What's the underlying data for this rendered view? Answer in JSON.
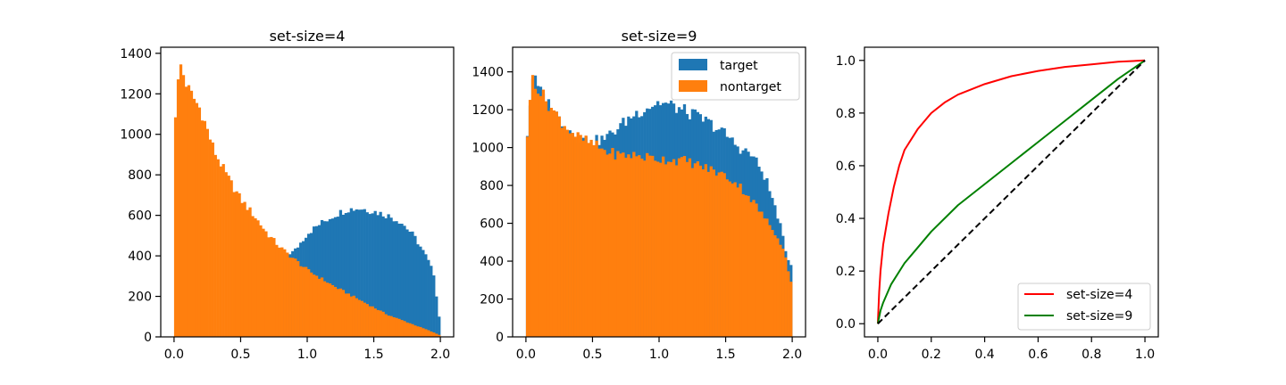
{
  "chart_data": [
    {
      "type": "bar",
      "subtype": "histogram",
      "title": "set-size=4",
      "xlim": [
        -0.1,
        2.1
      ],
      "ylim": [
        0,
        1430
      ],
      "xticks": [
        0.0,
        0.5,
        1.0,
        1.5,
        2.0
      ],
      "xtick_labels": [
        "0.0",
        "0.5",
        "1.0",
        "1.5",
        "2.0"
      ],
      "yticks": [
        0,
        200,
        400,
        600,
        800,
        1000,
        1200,
        1400
      ],
      "ytick_labels": [
        "0",
        "200",
        "400",
        "600",
        "800",
        "1000",
        "1200",
        "1400"
      ],
      "bins": {
        "start": 0,
        "end": 2,
        "count": 100
      },
      "series": [
        {
          "color": "#1f77b4",
          "anchors": [
            [
              0.78,
              400
            ],
            [
              0.9,
              420
            ],
            [
              1.0,
              510
            ],
            [
              1.1,
              560
            ],
            [
              1.2,
              600
            ],
            [
              1.3,
              630
            ],
            [
              1.4,
              635
            ],
            [
              1.5,
              620
            ],
            [
              1.6,
              600
            ],
            [
              1.7,
              570
            ],
            [
              1.8,
              500
            ],
            [
              1.9,
              390
            ],
            [
              1.95,
              310
            ],
            [
              1.99,
              100
            ]
          ]
        },
        {
          "color": "#ff7f0e",
          "anchors": [
            [
              0.0,
              1000
            ],
            [
              0.02,
              1210
            ],
            [
              0.05,
              1340
            ],
            [
              0.1,
              1230
            ],
            [
              0.2,
              1120
            ],
            [
              0.3,
              920
            ],
            [
              0.4,
              790
            ],
            [
              0.5,
              680
            ],
            [
              0.6,
              600
            ],
            [
              0.7,
              510
            ],
            [
              0.8,
              440
            ],
            [
              1.0,
              330
            ],
            [
              1.2,
              250
            ],
            [
              1.4,
              180
            ],
            [
              1.6,
              110
            ],
            [
              1.8,
              60
            ],
            [
              1.9,
              35
            ],
            [
              1.99,
              10
            ]
          ]
        }
      ]
    },
    {
      "type": "bar",
      "subtype": "histogram",
      "title": "set-size=9",
      "xlim": [
        -0.1,
        2.1
      ],
      "ylim": [
        0,
        1530
      ],
      "xticks": [
        0.0,
        0.5,
        1.0,
        1.5,
        2.0
      ],
      "xtick_labels": [
        "0.0",
        "0.5",
        "1.0",
        "1.5",
        "2.0"
      ],
      "yticks": [
        0,
        200,
        400,
        600,
        800,
        1000,
        1200,
        1400
      ],
      "ytick_labels": [
        "0",
        "200",
        "400",
        "600",
        "800",
        "1000",
        "1200",
        "1400"
      ],
      "bins": {
        "start": 0,
        "end": 2,
        "count": 100
      },
      "legend": {
        "position": "top-right",
        "entries": [
          "target",
          "nontarget"
        ]
      },
      "series": [
        {
          "name": "target",
          "color": "#1f77b4",
          "anchors": [
            [
              0.0,
              1000
            ],
            [
              0.05,
              1380
            ],
            [
              0.1,
              1300
            ],
            [
              0.2,
              1200
            ],
            [
              0.3,
              1110
            ],
            [
              0.4,
              1050
            ],
            [
              0.5,
              1030
            ],
            [
              0.6,
              1050
            ],
            [
              0.7,
              1110
            ],
            [
              0.8,
              1170
            ],
            [
              0.9,
              1210
            ],
            [
              1.0,
              1240
            ],
            [
              1.1,
              1220
            ],
            [
              1.2,
              1190
            ],
            [
              1.3,
              1160
            ],
            [
              1.4,
              1120
            ],
            [
              1.5,
              1070
            ],
            [
              1.6,
              1000
            ],
            [
              1.7,
              960
            ],
            [
              1.8,
              840
            ],
            [
              1.9,
              620
            ],
            [
              1.95,
              450
            ],
            [
              1.99,
              380
            ]
          ]
        },
        {
          "name": "nontarget",
          "color": "#ff7f0e",
          "anchors": [
            [
              0.0,
              1000
            ],
            [
              0.05,
              1380
            ],
            [
              0.1,
              1300
            ],
            [
              0.2,
              1200
            ],
            [
              0.3,
              1110
            ],
            [
              0.4,
              1050
            ],
            [
              0.5,
              1020
            ],
            [
              0.6,
              980
            ],
            [
              0.7,
              960
            ],
            [
              0.8,
              960
            ],
            [
              0.9,
              950
            ],
            [
              1.0,
              940
            ],
            [
              1.2,
              930
            ],
            [
              1.4,
              880
            ],
            [
              1.5,
              850
            ],
            [
              1.6,
              800
            ],
            [
              1.7,
              720
            ],
            [
              1.8,
              620
            ],
            [
              1.9,
              520
            ],
            [
              1.95,
              420
            ],
            [
              1.99,
              290
            ]
          ]
        }
      ]
    },
    {
      "type": "line",
      "xlim": [
        -0.05,
        1.05
      ],
      "ylim": [
        -0.05,
        1.05
      ],
      "xticks": [
        0.0,
        0.2,
        0.4,
        0.6,
        0.8,
        1.0
      ],
      "xtick_labels": [
        "0.0",
        "0.2",
        "0.4",
        "0.6",
        "0.8",
        "1.0"
      ],
      "yticks": [
        0.0,
        0.2,
        0.4,
        0.6,
        0.8,
        1.0
      ],
      "ytick_labels": [
        "0.0",
        "0.2",
        "0.4",
        "0.6",
        "0.8",
        "1.0"
      ],
      "legend": {
        "position": "bottom-right",
        "entries": [
          "set-size=4",
          "set-size=9"
        ]
      },
      "series": [
        {
          "name": "set-size=4",
          "color": "#ff0000",
          "x": [
            0.0,
            0.005,
            0.01,
            0.02,
            0.04,
            0.06,
            0.08,
            0.1,
            0.15,
            0.2,
            0.25,
            0.3,
            0.4,
            0.5,
            0.6,
            0.7,
            0.8,
            0.9,
            1.0
          ],
          "y": [
            0.0,
            0.12,
            0.2,
            0.3,
            0.42,
            0.52,
            0.6,
            0.66,
            0.74,
            0.8,
            0.84,
            0.87,
            0.91,
            0.94,
            0.96,
            0.975,
            0.985,
            0.995,
            1.0
          ]
        },
        {
          "name": "set-size=9",
          "color": "#008000",
          "x": [
            0.0,
            0.01,
            0.02,
            0.05,
            0.1,
            0.15,
            0.2,
            0.3,
            0.4,
            0.5,
            0.6,
            0.7,
            0.8,
            0.9,
            1.0
          ],
          "y": [
            0.0,
            0.05,
            0.08,
            0.15,
            0.23,
            0.29,
            0.35,
            0.45,
            0.53,
            0.61,
            0.69,
            0.77,
            0.85,
            0.93,
            1.0
          ]
        },
        {
          "name": "",
          "color": "#000000",
          "dashed": true,
          "x": [
            0.0,
            1.0
          ],
          "y": [
            0.0,
            1.0
          ]
        }
      ]
    }
  ]
}
